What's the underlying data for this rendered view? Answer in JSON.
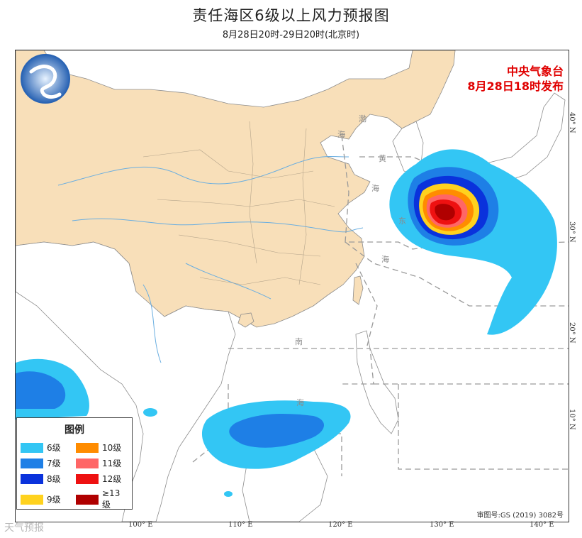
{
  "header": {
    "title": "责任海区6级以上风力预报图",
    "subtitle": "8月28日20时-29日20时(北京时)"
  },
  "publisher": {
    "line1": "中央气象台",
    "line2": "8月28日18时发布"
  },
  "review_number": "审图号:GS (2019) 3082号",
  "watermark": "天气预报",
  "map": {
    "longitude_labels": [
      "100° E",
      "110° E",
      "120° E",
      "130° E",
      "140° E"
    ],
    "latitude_labels": [
      "40° N",
      "30° N",
      "20° N",
      "10° N"
    ],
    "sea_labels": [
      "渤",
      "海",
      "黄",
      "海",
      "东",
      "海",
      "南",
      "海"
    ],
    "colors": {
      "land_china": "#f8dfb9",
      "land_other": "#ffffff",
      "border": "#888888",
      "river": "#6aaee0"
    }
  },
  "legend": {
    "title": "图例",
    "items": [
      {
        "label": "6级",
        "color": "#33c6f4"
      },
      {
        "label": "10级",
        "color": "#ff8c00"
      },
      {
        "label": "7级",
        "color": "#1e7fe6"
      },
      {
        "label": "11级",
        "color": "#ff6666"
      },
      {
        "label": "8级",
        "color": "#0a32dc"
      },
      {
        "label": "12级",
        "color": "#ee1111"
      },
      {
        "label": "9级",
        "color": "#ffd21e"
      },
      {
        "label": "≥13级",
        "color": "#b00000"
      }
    ]
  }
}
